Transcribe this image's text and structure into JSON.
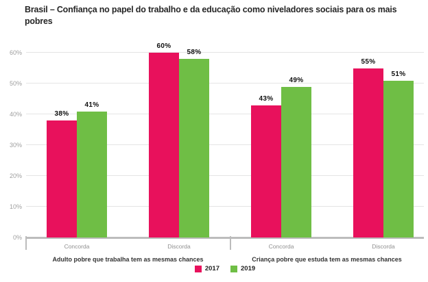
{
  "title": "Brasil – Confiança no papel do trabalho e da educação como niveladores sociais para os mais pobres",
  "colors": {
    "series_2017": "#E8115C",
    "series_2019": "#6FBE45",
    "gridline": "#E4E4E4",
    "axis": "#BCBCBC",
    "y_tick_label": "#9E9E9E",
    "category_label": "#8F8F8F",
    "group_label": "#333333",
    "data_label": "#0F0F0F",
    "background": "#FFFFFF"
  },
  "chart_data": {
    "type": "bar",
    "title": "Brasil – Confiança no papel do trabalho e da educação como niveladores sociais para os mais pobres",
    "categories": [
      "Concorda",
      "Discorda",
      "Concorda",
      "Discorda"
    ],
    "groups": [
      {
        "label": "Adulto pobre que trabalha tem as mesmas chances",
        "categories": [
          "Concorda",
          "Discorda"
        ]
      },
      {
        "label": "Criança pobre que estuda tem as mesmas chances",
        "categories": [
          "Concorda",
          "Discorda"
        ]
      }
    ],
    "series": [
      {
        "name": "2017",
        "color": "#E8115C",
        "values": [
          38,
          60,
          43,
          55
        ]
      },
      {
        "name": "2019",
        "color": "#6FBE45",
        "values": [
          41,
          58,
          49,
          51
        ]
      }
    ],
    "data_labels": [
      [
        "38%",
        "60%",
        "43%",
        "55%"
      ],
      [
        "41%",
        "58%",
        "49%",
        "51%"
      ]
    ],
    "ylim": [
      0,
      60
    ],
    "ytick_step": 10,
    "ytick_labels": [
      "0%",
      "10%",
      "20%",
      "30%",
      "40%",
      "50%",
      "60%"
    ],
    "grid": true,
    "legend_position": "bottom"
  },
  "legend": {
    "items": [
      {
        "label": "2017",
        "color": "#E8115C"
      },
      {
        "label": "2019",
        "color": "#6FBE45"
      }
    ]
  }
}
